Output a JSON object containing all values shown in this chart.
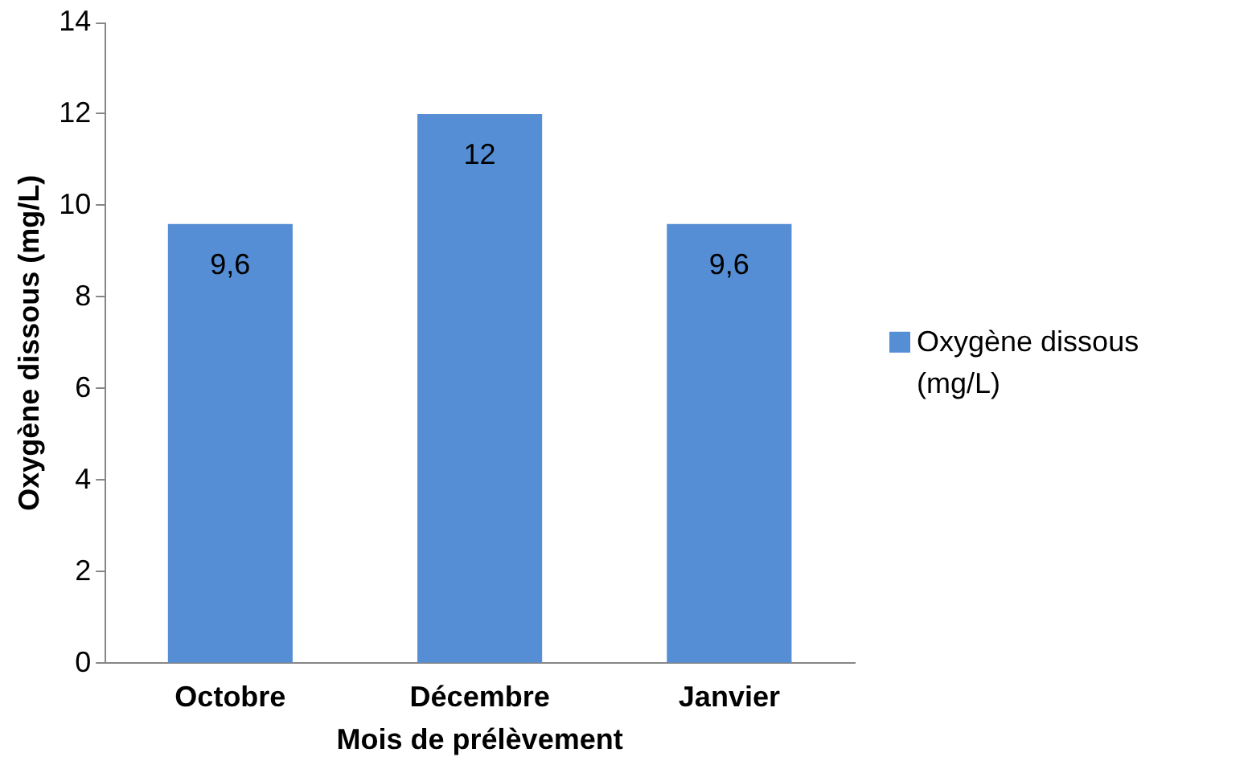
{
  "chart_data": {
    "type": "bar",
    "xlabel": "Mois de prélèvement",
    "ylabel": "Oxygène dissous (mg/L)",
    "categories": [
      "Octobre",
      "Décembre",
      "Janvier"
    ],
    "series": [
      {
        "name": "Oxygène dissous (mg/L)",
        "color": "#558ed5",
        "values": [
          9.6,
          12,
          9.6
        ],
        "value_labels": [
          "9,6",
          "12",
          "9,6"
        ]
      }
    ],
    "ylim": [
      0,
      14
    ],
    "yticks": [
      0,
      2,
      4,
      6,
      8,
      10,
      12,
      14
    ],
    "grid": false,
    "legend": "right"
  }
}
